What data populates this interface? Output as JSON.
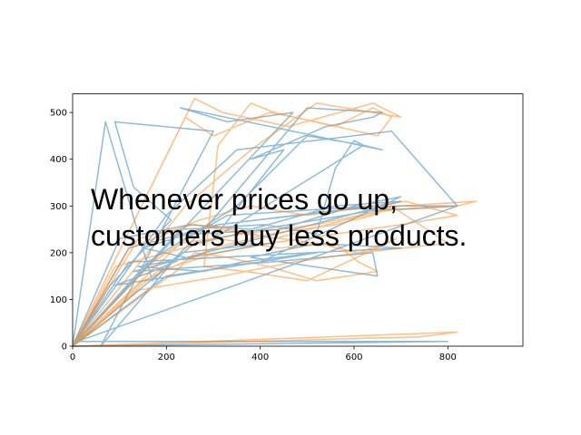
{
  "chart_data": {
    "type": "line",
    "title": "",
    "xlabel": "",
    "ylabel": "",
    "xlim": [
      0,
      960
    ],
    "ylim": [
      0,
      540
    ],
    "xticks": [
      0,
      200,
      400,
      600,
      800
    ],
    "yticks": [
      0,
      100,
      200,
      300,
      400,
      500
    ],
    "grid": false,
    "legend": "none",
    "annotation": [
      "Whenever prices go up,",
      "customers buy less products."
    ],
    "series": [
      {
        "color": "#1f77b4",
        "alpha": 0.5,
        "x": [
          0,
          80,
          210,
          130,
          90,
          300,
          60,
          230,
          420,
          140,
          280,
          360,
          520,
          90,
          170,
          240,
          150,
          310,
          640,
          330,
          260,
          440,
          600,
          700,
          400,
          200,
          0,
          120,
          310,
          480,
          560,
          690,
          820,
          640,
          520,
          400,
          260,
          0,
          160,
          350,
          500,
          620,
          660,
          230,
          330,
          470,
          0,
          100,
          250,
          380,
          560,
          700,
          130,
          420,
          640,
          650,
          380,
          520,
          700,
          120,
          0,
          230,
          410,
          520,
          560,
          600,
          620,
          300,
          450,
          380,
          540,
          640,
          660,
          500,
          290,
          170,
          70,
          0,
          200,
          350,
          680,
          820,
          10,
          800,
          0
        ],
        "y": [
          0,
          130,
          270,
          340,
          480,
          460,
          0,
          200,
          220,
          170,
          160,
          180,
          200,
          130,
          160,
          190,
          210,
          260,
          300,
          280,
          240,
          250,
          300,
          320,
          180,
          150,
          0,
          210,
          260,
          280,
          290,
          300,
          300,
          290,
          270,
          250,
          220,
          0,
          180,
          300,
          450,
          430,
          420,
          510,
          480,
          500,
          0,
          230,
          260,
          250,
          300,
          310,
          160,
          180,
          200,
          150,
          190,
          220,
          210,
          180,
          0,
          250,
          260,
          240,
          380,
          440,
          430,
          230,
          420,
          400,
          470,
          490,
          500,
          510,
          260,
          140,
          480,
          0,
          280,
          420,
          460,
          300,
          10,
          10,
          0
        ]
      },
      {
        "color": "#ff7f0e",
        "alpha": 0.5,
        "x": [
          0,
          260,
          320,
          460,
          640,
          700,
          520,
          380,
          240,
          0,
          170,
          290,
          430,
          580,
          670,
          820,
          860,
          700,
          520,
          360,
          230,
          0,
          150,
          300,
          420,
          560,
          640,
          680,
          800,
          610,
          520,
          370,
          260,
          140,
          0,
          120,
          200,
          270,
          380,
          500,
          640,
          710,
          820,
          700,
          560,
          420,
          310,
          180,
          0,
          90,
          200,
          310,
          440,
          560,
          610,
          650,
          520,
          420,
          330,
          260,
          220,
          0,
          140,
          320,
          470,
          610,
          690,
          500,
          370,
          280,
          310,
          380,
          430,
          560,
          640,
          680,
          650,
          520,
          420,
          300,
          240,
          0,
          820,
          740,
          0
        ],
        "y": [
          0,
          530,
          500,
          470,
          520,
          490,
          520,
          420,
          300,
          0,
          180,
          260,
          230,
          270,
          290,
          300,
          310,
          300,
          260,
          240,
          220,
          0,
          140,
          210,
          240,
          260,
          280,
          300,
          220,
          200,
          220,
          240,
          260,
          230,
          0,
          210,
          240,
          270,
          300,
          280,
          300,
          310,
          280,
          260,
          240,
          220,
          200,
          160,
          0,
          170,
          200,
          230,
          210,
          220,
          180,
          160,
          140,
          170,
          190,
          200,
          160,
          0,
          120,
          150,
          180,
          200,
          230,
          140,
          160,
          170,
          430,
          520,
          500,
          470,
          510,
          490,
          450,
          480,
          500,
          450,
          490,
          0,
          30,
          20,
          0
        ]
      }
    ]
  }
}
